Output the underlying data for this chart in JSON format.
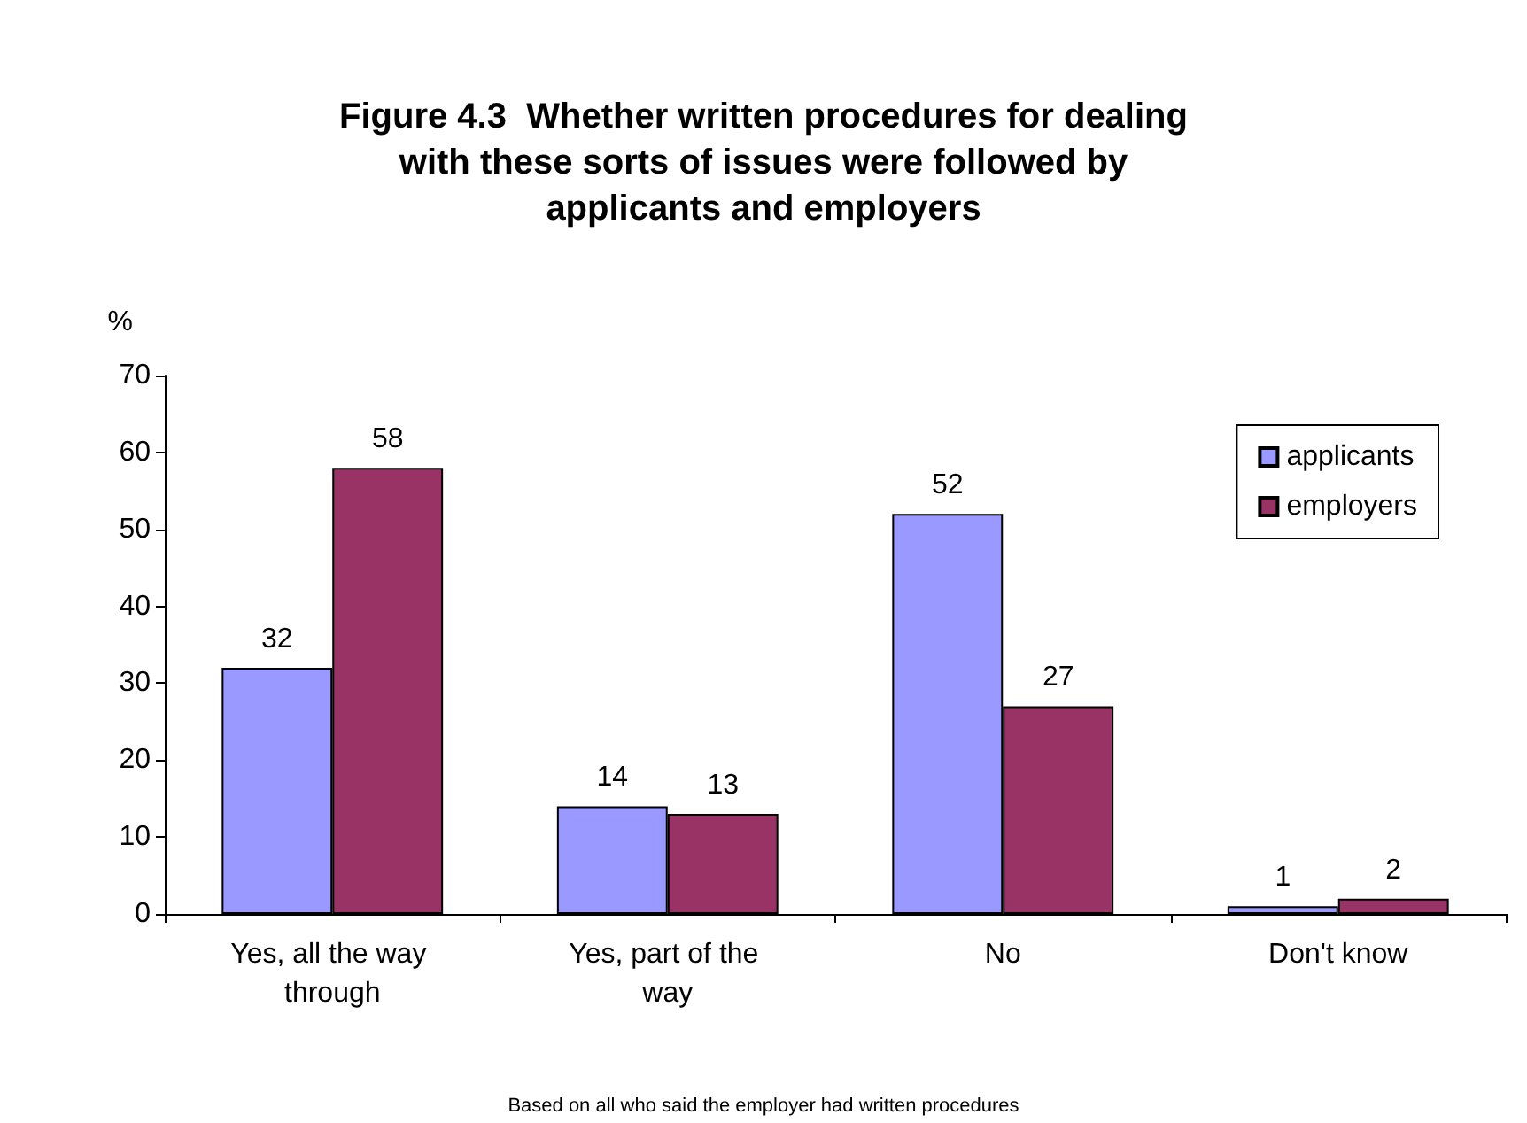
{
  "chart_data": {
    "type": "bar",
    "title": "Figure 4.3  Whether written procedures for dealing with these sorts of issues were followed by applicants and employers",
    "ylabel": "%",
    "categories": [
      "Yes, all the way through",
      "Yes, part of the way",
      "No",
      "Don't know"
    ],
    "series": [
      {
        "name": "applicants",
        "color": "#9999ff",
        "values": [
          32,
          14,
          52,
          1
        ]
      },
      {
        "name": "employers",
        "color": "#993366",
        "values": [
          58,
          13,
          27,
          2
        ]
      }
    ],
    "ylim": [
      0,
      70
    ],
    "yticks": [
      0,
      10,
      20,
      30,
      40,
      50,
      60,
      70
    ],
    "grid": false,
    "legend": "top right",
    "data_labels": true,
    "annotations": [
      "Based on all who said the employer had written procedures"
    ]
  }
}
